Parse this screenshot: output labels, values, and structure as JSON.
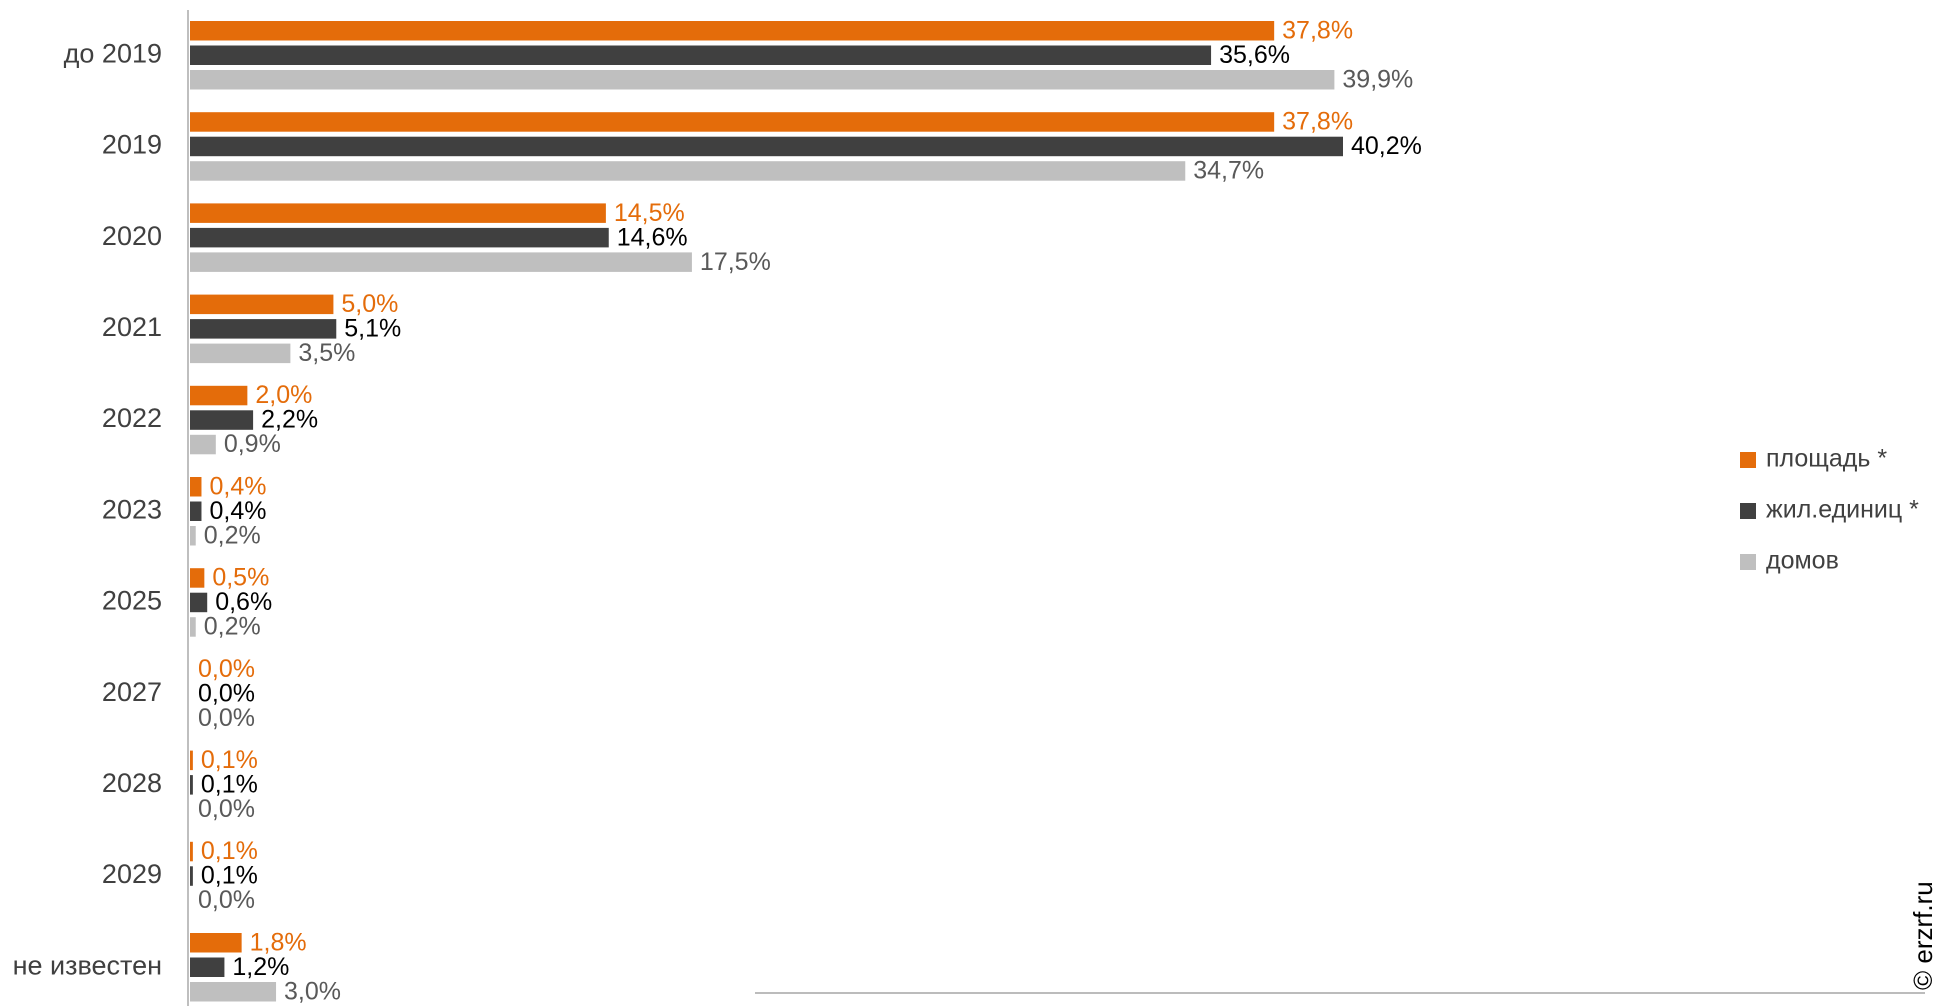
{
  "chart_data": {
    "type": "bar",
    "orientation": "horizontal",
    "categories": [
      "до 2019",
      "2019",
      "2020",
      "2021",
      "2022",
      "2023",
      "2025",
      "2027",
      "2028",
      "2029",
      "не известен"
    ],
    "series": [
      {
        "name": "площадь *",
        "color": "#E46C0A",
        "label_color": "#E46C0A",
        "values": [
          37.8,
          37.8,
          14.5,
          5.0,
          2.0,
          0.4,
          0.5,
          0.0,
          0.1,
          0.1,
          1.8
        ],
        "labels": [
          "37,8%",
          "37,8%",
          "14,5%",
          "5,0%",
          "2,0%",
          "0,4%",
          "0,5%",
          "0,0%",
          "0,1%",
          "0,1%",
          "1,8%"
        ]
      },
      {
        "name": "жил.единиц *",
        "color": "#404040",
        "label_color": "#000000",
        "values": [
          35.6,
          40.2,
          14.6,
          5.1,
          2.2,
          0.4,
          0.6,
          0.0,
          0.1,
          0.1,
          1.2
        ],
        "labels": [
          "35,6%",
          "40,2%",
          "14,6%",
          "5,1%",
          "2,2%",
          "0,4%",
          "0,6%",
          "0,0%",
          "0,1%",
          "0,1%",
          "1,2%"
        ]
      },
      {
        "name": "домов",
        "color": "#BFBFBF",
        "label_color": "#595959",
        "values": [
          39.9,
          34.7,
          17.5,
          3.5,
          0.9,
          0.2,
          0.2,
          0.0,
          0.0,
          0.0,
          3.0
        ],
        "labels": [
          "39,9%",
          "34,7%",
          "17,5%",
          "3,5%",
          "0,9%",
          "0,2%",
          "0,2%",
          "0,0%",
          "0,0%",
          "0,0%",
          "3,0%"
        ]
      }
    ],
    "xlim": [
      0,
      40.2
    ],
    "grid": false,
    "legend": "right"
  },
  "watermark": "© erzrf.ru"
}
